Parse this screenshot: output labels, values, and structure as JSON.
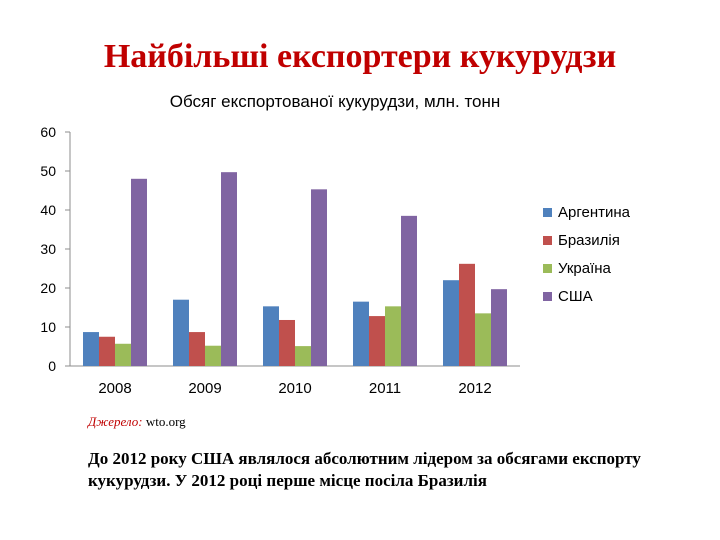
{
  "slide": {
    "title": "Найбільші експортери кукурудзи",
    "source_label": "Джерело:",
    "source_value": " wto.org",
    "note": "До 2012 року США являлося абсолютним лідером за обсягами експорту кукурудзи. У 2012 році перше місце посіла Бразилія"
  },
  "chart_data": {
    "type": "bar",
    "title": "Обсяг експортованої кукурудзи, млн. тонн",
    "categories": [
      "2008",
      "2009",
      "2010",
      "2011",
      "2012"
    ],
    "series": [
      {
        "name": "Аргентина",
        "color": "#4f81bd",
        "values": [
          8.7,
          17,
          15.3,
          16.5,
          22
        ]
      },
      {
        "name": "Бразилія",
        "color": "#c0504d",
        "values": [
          7.5,
          8.7,
          11.8,
          12.8,
          26.2
        ]
      },
      {
        "name": "Україна",
        "color": "#9bbb59",
        "values": [
          5.7,
          5.2,
          5.1,
          15.3,
          13.5
        ]
      },
      {
        "name": "США",
        "color": "#8064a2",
        "values": [
          48,
          49.7,
          45.3,
          38.5,
          19.7
        ]
      }
    ],
    "ylim": [
      0,
      60
    ],
    "yticks": [
      0,
      10,
      20,
      30,
      40,
      50,
      60
    ],
    "grid": false,
    "legend_position": "right"
  }
}
